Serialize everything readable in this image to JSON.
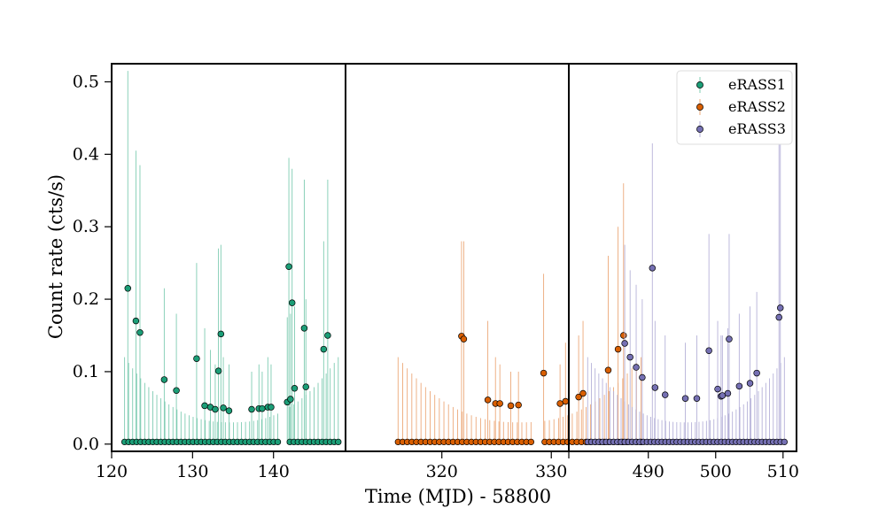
{
  "chart_data": {
    "type": "scatter",
    "title": "",
    "xlabel": "Time (MJD) - 58800",
    "ylabel": "Count rate (cts/s)",
    "ylim": [
      -0.01,
      0.525
    ],
    "yticks": [
      0.0,
      0.1,
      0.2,
      0.3,
      0.4,
      0.5
    ],
    "ytick_labels": [
      "0.0",
      "0.1",
      "0.2",
      "0.3",
      "0.4",
      "0.5"
    ],
    "legend_position": "top-right",
    "panels": [
      {
        "name": "eRASS1",
        "xlim": [
          120,
          148.9
        ],
        "xticks": [
          120,
          130,
          140
        ],
        "xtick_labels": [
          "120",
          "130",
          "140"
        ],
        "detections": [
          {
            "x": 122.0,
            "y": 0.215,
            "err_top": 0.515
          },
          {
            "x": 123.0,
            "y": 0.17,
            "err_top": 0.405
          },
          {
            "x": 123.5,
            "y": 0.154,
            "err_top": 0.385
          },
          {
            "x": 126.5,
            "y": 0.089,
            "err_top": 0.215
          },
          {
            "x": 128.0,
            "y": 0.074,
            "err_top": 0.18
          },
          {
            "x": 130.5,
            "y": 0.118,
            "err_top": 0.25
          },
          {
            "x": 131.5,
            "y": 0.053,
            "err_top": 0.16
          },
          {
            "x": 132.2,
            "y": 0.051,
            "err_top": 0.13
          },
          {
            "x": 132.8,
            "y": 0.048,
            "err_top": 0.11
          },
          {
            "x": 133.2,
            "y": 0.101,
            "err_top": 0.27
          },
          {
            "x": 133.5,
            "y": 0.152,
            "err_top": 0.275
          },
          {
            "x": 133.8,
            "y": 0.05,
            "err_top": 0.12
          },
          {
            "x": 134.5,
            "y": 0.046,
            "err_top": 0.11
          },
          {
            "x": 137.3,
            "y": 0.048,
            "err_top": 0.1
          },
          {
            "x": 138.2,
            "y": 0.049,
            "err_top": 0.11
          },
          {
            "x": 138.6,
            "y": 0.049,
            "err_top": 0.1
          },
          {
            "x": 139.3,
            "y": 0.051,
            "err_top": 0.12
          },
          {
            "x": 139.7,
            "y": 0.051,
            "err_top": 0.11
          },
          {
            "x": 141.7,
            "y": 0.058,
            "err_top": 0.175
          },
          {
            "x": 141.9,
            "y": 0.245,
            "err_top": 0.395
          },
          {
            "x": 142.1,
            "y": 0.062,
            "err_top": 0.18
          },
          {
            "x": 142.3,
            "y": 0.195,
            "err_top": 0.38
          },
          {
            "x": 142.6,
            "y": 0.077,
            "err_top": 0.19
          },
          {
            "x": 143.8,
            "y": 0.16,
            "err_top": 0.365
          },
          {
            "x": 144.0,
            "y": 0.079,
            "err_top": 0.2
          },
          {
            "x": 146.2,
            "y": 0.131,
            "err_top": 0.28
          },
          {
            "x": 146.7,
            "y": 0.15,
            "err_top": 0.365
          }
        ]
      },
      {
        "name": "eRASS2",
        "xlim": [
          311.2,
          331.6
        ],
        "xticks": [
          320,
          330
        ],
        "xtick_labels": [
          "320",
          "330"
        ],
        "detections": [
          {
            "x": 321.8,
            "y": 0.149,
            "err_top": 0.28
          },
          {
            "x": 322.0,
            "y": 0.145,
            "err_top": 0.28
          },
          {
            "x": 324.2,
            "y": 0.061,
            "err_top": 0.17
          },
          {
            "x": 324.9,
            "y": 0.056,
            "err_top": 0.12
          },
          {
            "x": 325.3,
            "y": 0.056,
            "err_top": 0.11
          },
          {
            "x": 326.3,
            "y": 0.053,
            "err_top": 0.1
          },
          {
            "x": 327.0,
            "y": 0.054,
            "err_top": 0.1
          },
          {
            "x": 329.3,
            "y": 0.098,
            "err_top": 0.235
          },
          {
            "x": 330.8,
            "y": 0.056,
            "err_top": 0.11
          },
          {
            "x": 331.3,
            "y": 0.059,
            "err_top": 0.14
          },
          {
            "x": 332.5,
            "y": 0.065,
            "err_top": 0.15
          },
          {
            "x": 332.9,
            "y": 0.07,
            "err_top": 0.17
          },
          {
            "x": 335.2,
            "y": 0.102,
            "err_top": 0.26
          },
          {
            "x": 336.1,
            "y": 0.131,
            "err_top": 0.3
          },
          {
            "x": 336.6,
            "y": 0.15,
            "err_top": 0.36
          }
        ]
      },
      {
        "name": "eRASS3",
        "xlim": [
          478.2,
          512.0
        ],
        "xticks": [
          490,
          500,
          510
        ],
        "xtick_labels": [
          "490",
          "500",
          "510"
        ],
        "detections": [
          {
            "x": 486.5,
            "y": 0.139,
            "err_top": 0.275
          },
          {
            "x": 487.3,
            "y": 0.12,
            "err_top": 0.24
          },
          {
            "x": 488.2,
            "y": 0.106,
            "err_top": 0.22
          },
          {
            "x": 489.1,
            "y": 0.092,
            "err_top": 0.2
          },
          {
            "x": 490.6,
            "y": 0.243,
            "err_top": 0.415
          },
          {
            "x": 491.0,
            "y": 0.078,
            "err_top": 0.17
          },
          {
            "x": 492.5,
            "y": 0.068,
            "err_top": 0.15
          },
          {
            "x": 495.5,
            "y": 0.063,
            "err_top": 0.14
          },
          {
            "x": 497.2,
            "y": 0.063,
            "err_top": 0.15
          },
          {
            "x": 499.0,
            "y": 0.129,
            "err_top": 0.29
          },
          {
            "x": 500.3,
            "y": 0.076,
            "err_top": 0.17
          },
          {
            "x": 500.8,
            "y": 0.066,
            "err_top": 0.15
          },
          {
            "x": 501.0,
            "y": 0.067,
            "err_top": 0.15
          },
          {
            "x": 501.8,
            "y": 0.07,
            "err_top": 0.16
          },
          {
            "x": 502.0,
            "y": 0.145,
            "err_top": 0.29
          },
          {
            "x": 503.5,
            "y": 0.08,
            "err_top": 0.18
          },
          {
            "x": 505.1,
            "y": 0.084,
            "err_top": 0.19
          },
          {
            "x": 506.1,
            "y": 0.098,
            "err_top": 0.21
          },
          {
            "x": 509.4,
            "y": 0.175,
            "err_top": 0.43
          },
          {
            "x": 509.6,
            "y": 0.188,
            "err_top": 0.47
          }
        ]
      }
    ],
    "baseline": {
      "eRASS1": {
        "range": [
          121.6,
          148.0
        ],
        "gaps": [
          [
            140.9,
            141.6
          ]
        ],
        "err_center": 0.03,
        "err_edge": 0.12
      },
      "eRASS2": {
        "range": [
          316.0,
          338.2
        ],
        "gaps": [
          [
            328.3,
            329.0
          ]
        ],
        "err_center": 0.03,
        "err_edge": 0.12
      },
      "eRASS3": {
        "range": [
          481.0,
          510.2
        ],
        "gaps": [],
        "err_center": 0.03,
        "err_edge": 0.12
      }
    },
    "legend": [
      {
        "label": "eRASS1"
      },
      {
        "label": "eRASS2"
      },
      {
        "label": "eRASS3"
      }
    ]
  },
  "colors": {
    "eRASS1_marker": "#1b9e77",
    "eRASS1_err": "#7fccb2",
    "eRASS2_marker": "#d95f02",
    "eRASS2_err": "#eca97a",
    "eRASS3_marker": "#7570b3",
    "eRASS3_err": "#b6b2d9"
  }
}
